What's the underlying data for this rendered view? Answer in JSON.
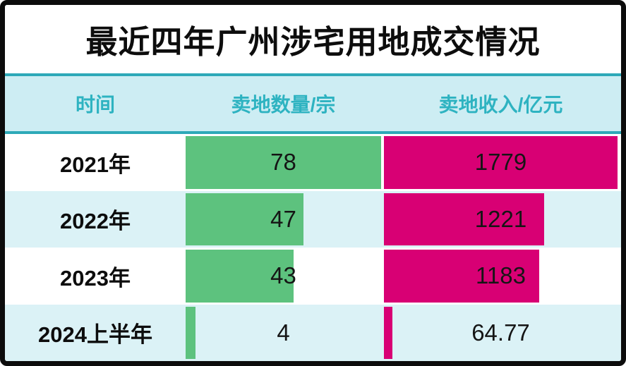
{
  "title": "最近四年广州涉宅用地成交情况",
  "header": {
    "col_time": "时间",
    "col_count": "卖地数量/宗",
    "col_revenue": "卖地收入/亿元"
  },
  "colors": {
    "count_bar_green": "#5dc27e",
    "revenue_bar_magenta": "#d80074",
    "header_bg": "#cdedf3",
    "header_text_teal": "#2eb3c1",
    "divider_teal": "#2da9b8",
    "row_alt_bg": "#dbf2f6",
    "title_text": "#0d0d0d"
  },
  "chart_data": {
    "type": "bar",
    "orientation": "horizontal",
    "title": "最近四年广州涉宅用地成交情况",
    "categories": [
      "2021年",
      "2022年",
      "2023年",
      "2024上半年"
    ],
    "series": [
      {
        "name": "卖地数量/宗",
        "values": [
          78,
          47,
          43,
          4
        ],
        "axis_max": 78,
        "color": "#5dc27e"
      },
      {
        "name": "卖地收入/亿元",
        "values": [
          1779,
          1221,
          1183,
          64.77
        ],
        "axis_max": 1779,
        "color": "#d80074"
      }
    ],
    "value_labels_shown": true,
    "grid": false,
    "legend": "none"
  },
  "rows": [
    {
      "time": "2021年",
      "count_label": "78",
      "revenue_label": "1779"
    },
    {
      "time": "2022年",
      "count_label": "47",
      "revenue_label": "1221"
    },
    {
      "time": "2023年",
      "count_label": "43",
      "revenue_label": "1183"
    },
    {
      "time": "2024上半年",
      "count_label": "4",
      "revenue_label": "64.77"
    }
  ]
}
